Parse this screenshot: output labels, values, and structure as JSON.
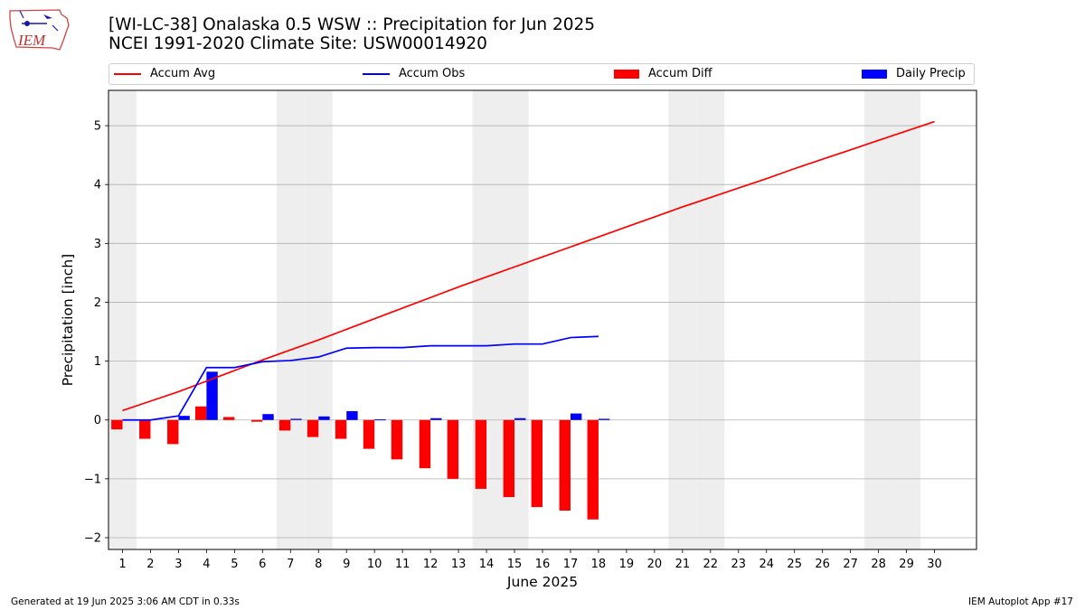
{
  "header": {
    "logo_text": "IEM",
    "title_line1": "[WI-LC-38] Onalaska 0.5 WSW :: Precipitation for Jun 2025",
    "title_line2": "NCEI 1991-2020 Climate Site: USW00014920"
  },
  "legend": {
    "accum_avg": "Accum Avg",
    "accum_obs": "Accum Obs",
    "accum_diff": "Accum Diff",
    "daily_precip": "Daily Precip"
  },
  "footer": {
    "left": "Generated at 19 Jun 2025 3:06 AM CDT in 0.33s",
    "right": "IEM Autoplot App #17"
  },
  "colors": {
    "avg": "#ff0000",
    "obs": "#0000ff",
    "diff": "#ff0000",
    "daily": "#0000ff",
    "weekend_shade": "#eeeeee",
    "grid": "#b0b0b0"
  },
  "chart_data": {
    "type": "bar",
    "xlabel": "June 2025",
    "ylabel": "Precipitation [inch]",
    "xlim": [
      0.5,
      31.5
    ],
    "ylim": [
      -2.2,
      5.6
    ],
    "yticks": [
      -2,
      -1,
      0,
      1,
      2,
      3,
      4,
      5
    ],
    "yticklabels": [
      "−2",
      "−1",
      "0",
      "1",
      "2",
      "3",
      "4",
      "5"
    ],
    "days": [
      1,
      2,
      3,
      4,
      5,
      6,
      7,
      8,
      9,
      10,
      11,
      12,
      13,
      14,
      15,
      16,
      17,
      18,
      19,
      20,
      21,
      22,
      23,
      24,
      25,
      26,
      27,
      28,
      29,
      30
    ],
    "grid": "horizontal",
    "legend_position": "top",
    "weekend_days": [
      1,
      7,
      8,
      14,
      15,
      21,
      22,
      28,
      29
    ],
    "series": [
      {
        "name": "Accum Avg",
        "kind": "line",
        "x": [
          1,
          2,
          3,
          4,
          5,
          6,
          7,
          8,
          9,
          10,
          11,
          12,
          13,
          14,
          15,
          16,
          17,
          18,
          19,
          20,
          21,
          22,
          23,
          24,
          25,
          26,
          27,
          28,
          29,
          30
        ],
        "values": [
          0.16,
          0.32,
          0.48,
          0.66,
          0.84,
          1.02,
          1.19,
          1.36,
          1.54,
          1.72,
          1.9,
          2.08,
          2.26,
          2.43,
          2.6,
          2.77,
          2.94,
          3.11,
          3.28,
          3.45,
          3.62,
          3.78,
          3.94,
          4.1,
          4.27,
          4.43,
          4.59,
          4.75,
          4.91,
          5.07
        ]
      },
      {
        "name": "Accum Obs",
        "kind": "line",
        "x": [
          1,
          2,
          3,
          4,
          5,
          6,
          7,
          8,
          9,
          10,
          11,
          12,
          13,
          14,
          15,
          16,
          17,
          18
        ],
        "values": [
          0.0,
          0.0,
          0.07,
          0.89,
          0.89,
          0.99,
          1.01,
          1.07,
          1.22,
          1.23,
          1.23,
          1.26,
          1.26,
          1.26,
          1.29,
          1.29,
          1.4,
          1.42
        ]
      },
      {
        "name": "Accum Diff",
        "kind": "bar",
        "x": [
          1,
          2,
          3,
          4,
          5,
          6,
          7,
          8,
          9,
          10,
          11,
          12,
          13,
          14,
          15,
          16,
          17,
          18
        ],
        "values": [
          -0.16,
          -0.32,
          -0.41,
          0.23,
          0.05,
          -0.03,
          -0.18,
          -0.29,
          -0.32,
          -0.49,
          -0.67,
          -0.82,
          -1.0,
          -1.17,
          -1.31,
          -1.48,
          -1.54,
          -1.69
        ]
      },
      {
        "name": "Daily Precip",
        "kind": "bar",
        "x": [
          1,
          2,
          3,
          4,
          5,
          6,
          7,
          8,
          9,
          10,
          11,
          12,
          13,
          14,
          15,
          16,
          17,
          18
        ],
        "values": [
          0.0,
          0.0,
          0.07,
          0.82,
          0.0,
          0.1,
          0.02,
          0.06,
          0.15,
          0.01,
          0.0,
          0.03,
          0.0,
          0.0,
          0.03,
          0.0,
          0.11,
          0.02
        ]
      }
    ]
  }
}
